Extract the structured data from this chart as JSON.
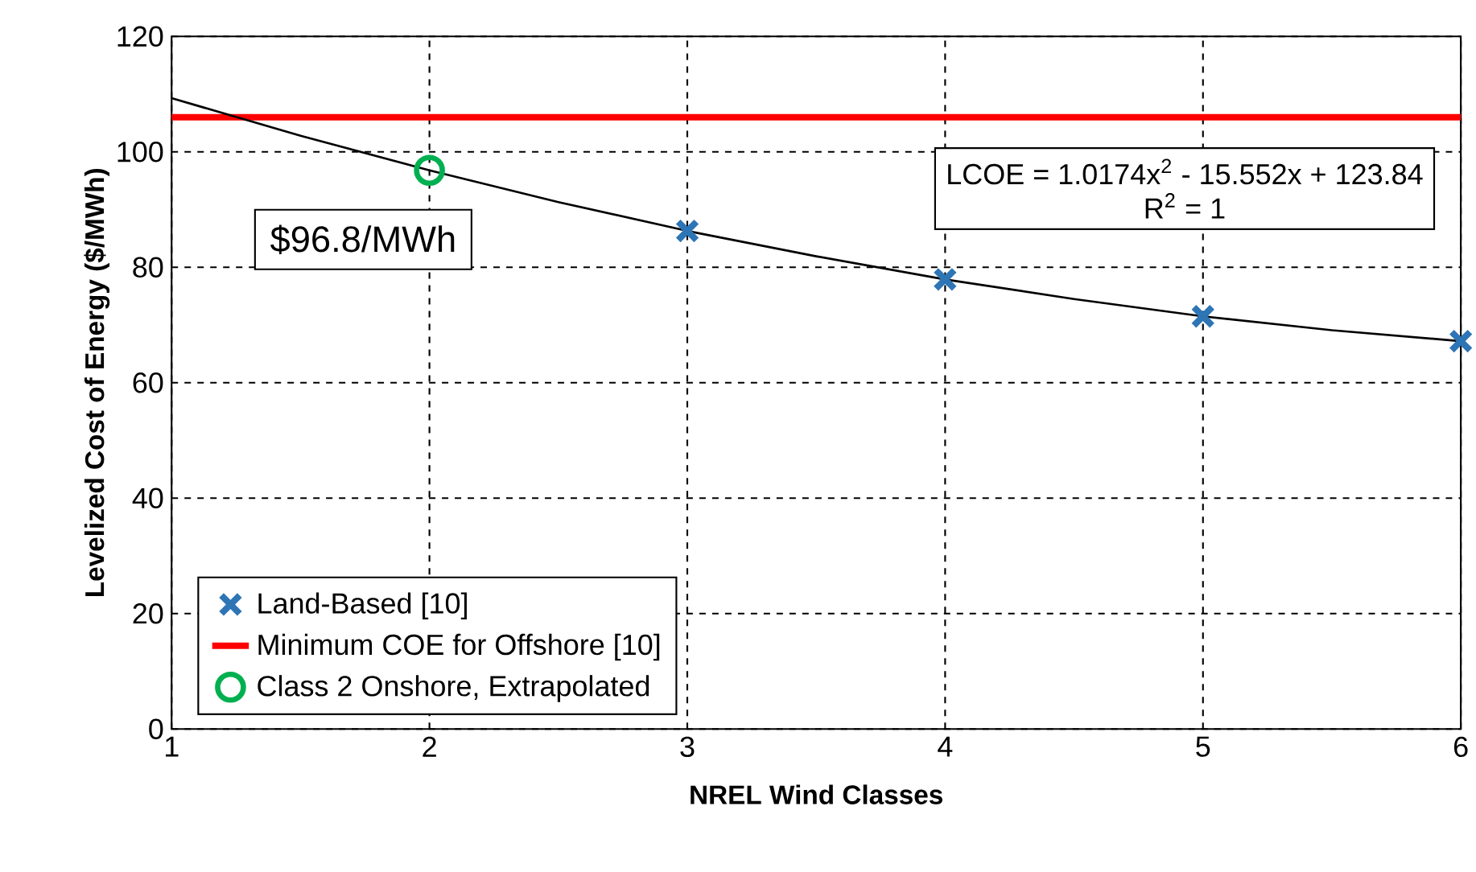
{
  "chart_data": {
    "type": "scatter",
    "xlabel": "NREL Wind Classes",
    "ylabel": "Levelized Cost of Energy ($/MWh)",
    "xlim": [
      1,
      6
    ],
    "ylim": [
      0,
      120
    ],
    "xticks": [
      1,
      2,
      3,
      4,
      5,
      6
    ],
    "yticks": [
      0,
      20,
      40,
      60,
      80,
      100,
      120
    ],
    "grid": true,
    "legend": "bottom left",
    "series": [
      {
        "name": "Land-Based [10]",
        "marker": "cross",
        "color": "#2e75b6",
        "x": [
          3,
          4,
          5,
          6
        ],
        "values": [
          86.3,
          77.9,
          71.5,
          67.2
        ]
      },
      {
        "name": "Class 2 Onshore, Extrapolated",
        "marker": "circle",
        "color": "#00b050",
        "x": [
          2
        ],
        "values": [
          96.8
        ]
      },
      {
        "type": "line",
        "marker": "none",
        "color": "#000000",
        "x": [
          1,
          1.5,
          2,
          2.5,
          3,
          3.5,
          4,
          4.5,
          5,
          5.5,
          6
        ],
        "values": [
          109.3,
          102.8,
          96.8,
          91.3,
          86.3,
          81.9,
          77.9,
          74.5,
          71.5,
          69.1,
          67.2
        ]
      }
    ],
    "ref_lines": [
      {
        "axis": "y",
        "value": 106,
        "label": "Minimum COE for Offshore [10]",
        "color": "#ff0000"
      }
    ],
    "annotations": [
      {
        "text": "$96.8/MWh",
        "x": 2,
        "y": 96.8
      },
      "LCOE = 1.0174x$^{2}$ - 15.552x + 123.84",
      "R$^{2}$ = 1"
    ]
  }
}
